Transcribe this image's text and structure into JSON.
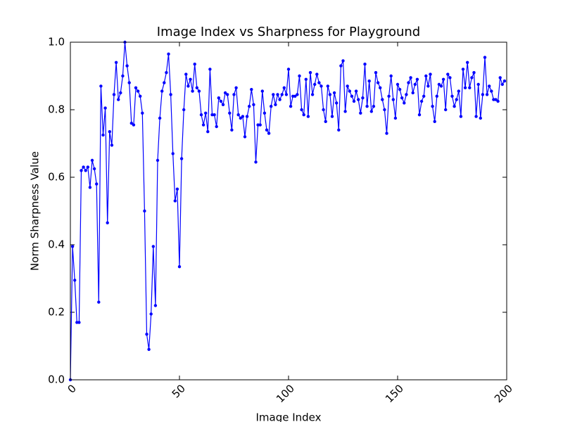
{
  "chart_data": {
    "type": "line",
    "title": "Image Index vs Sharpness for Playground",
    "x_label": "Image Index",
    "y_label": "Norm Sharpness Value",
    "x": [
      0,
      1,
      2,
      3,
      4,
      5,
      6,
      7,
      8,
      9,
      10,
      11,
      12,
      13,
      14,
      15,
      16,
      17,
      18,
      19,
      20,
      21,
      22,
      23,
      24,
      25,
      26,
      27,
      28,
      29,
      30,
      31,
      32,
      33,
      34,
      35,
      36,
      37,
      38,
      39,
      40,
      41,
      42,
      43,
      44,
      45,
      46,
      47,
      48,
      49,
      50,
      51,
      52,
      53,
      54,
      55,
      56,
      57,
      58,
      59,
      60,
      61,
      62,
      63,
      64,
      65,
      66,
      67,
      68,
      69,
      70,
      71,
      72,
      73,
      74,
      75,
      76,
      77,
      78,
      79,
      80,
      81,
      82,
      83,
      84,
      85,
      86,
      87,
      88,
      89,
      90,
      91,
      92,
      93,
      94,
      95,
      96,
      97,
      98,
      99,
      100,
      101,
      102,
      103,
      104,
      105,
      106,
      107,
      108,
      109,
      110,
      111,
      112,
      113,
      114,
      115,
      116,
      117,
      118,
      119,
      120,
      121,
      122,
      123,
      124,
      125,
      126,
      127,
      128,
      129,
      130,
      131,
      132,
      133,
      134,
      135,
      136,
      137,
      138,
      139,
      140,
      141,
      142,
      143,
      144,
      145,
      146,
      147,
      148,
      149,
      150,
      151,
      152,
      153,
      154,
      155,
      156,
      157,
      158,
      159,
      160,
      161,
      162,
      163,
      164,
      165,
      166,
      167,
      168,
      169,
      170,
      171,
      172,
      173,
      174,
      175,
      176,
      177,
      178,
      179,
      180,
      181,
      182,
      183,
      184,
      185,
      186,
      187,
      188,
      189,
      190,
      191,
      192,
      193,
      194,
      195,
      196,
      197,
      198,
      199
    ],
    "series": [
      {
        "color": "#0000ff",
        "values": [
          0.0,
          0.395,
          0.295,
          0.17,
          0.17,
          0.62,
          0.63,
          0.62,
          0.63,
          0.57,
          0.65,
          0.625,
          0.58,
          0.23,
          0.87,
          0.725,
          0.805,
          0.465,
          0.735,
          0.695,
          0.845,
          0.94,
          0.83,
          0.85,
          0.9,
          1.0,
          0.93,
          0.88,
          0.76,
          0.755,
          0.865,
          0.855,
          0.84,
          0.79,
          0.5,
          0.135,
          0.09,
          0.195,
          0.395,
          0.22,
          0.65,
          0.775,
          0.855,
          0.88,
          0.91,
          0.965,
          0.845,
          0.67,
          0.53,
          0.565,
          0.335,
          0.655,
          0.8,
          0.905,
          0.87,
          0.89,
          0.855,
          0.935,
          0.865,
          0.855,
          0.785,
          0.755,
          0.79,
          0.735,
          0.92,
          0.785,
          0.785,
          0.75,
          0.835,
          0.825,
          0.815,
          0.85,
          0.845,
          0.79,
          0.74,
          0.845,
          0.865,
          0.785,
          0.775,
          0.78,
          0.72,
          0.78,
          0.81,
          0.86,
          0.815,
          0.645,
          0.755,
          0.755,
          0.855,
          0.79,
          0.74,
          0.73,
          0.81,
          0.845,
          0.815,
          0.845,
          0.83,
          0.845,
          0.865,
          0.845,
          0.92,
          0.81,
          0.84,
          0.84,
          0.845,
          0.9,
          0.8,
          0.785,
          0.89,
          0.78,
          0.91,
          0.845,
          0.875,
          0.905,
          0.88,
          0.87,
          0.8,
          0.765,
          0.87,
          0.845,
          0.78,
          0.85,
          0.82,
          0.74,
          0.93,
          0.945,
          0.795,
          0.87,
          0.855,
          0.84,
          0.825,
          0.855,
          0.83,
          0.79,
          0.835,
          0.935,
          0.81,
          0.885,
          0.795,
          0.81,
          0.91,
          0.88,
          0.865,
          0.83,
          0.8,
          0.73,
          0.84,
          0.9,
          0.83,
          0.775,
          0.875,
          0.86,
          0.835,
          0.82,
          0.845,
          0.88,
          0.895,
          0.85,
          0.875,
          0.89,
          0.785,
          0.825,
          0.84,
          0.9,
          0.87,
          0.905,
          0.81,
          0.765,
          0.84,
          0.875,
          0.87,
          0.89,
          0.8,
          0.905,
          0.895,
          0.84,
          0.81,
          0.83,
          0.855,
          0.78,
          0.92,
          0.865,
          0.94,
          0.865,
          0.895,
          0.91,
          0.78,
          0.875,
          0.775,
          0.845,
          0.955,
          0.845,
          0.87,
          0.855,
          0.83,
          0.83,
          0.825,
          0.895,
          0.875,
          0.885
        ]
      }
    ],
    "xlim": [
      0,
      200
    ],
    "xticks": [
      0,
      50,
      100,
      150,
      200
    ],
    "ylim": [
      0,
      1
    ],
    "yticks": [
      {
        "value": 0,
        "label": "0.0"
      },
      0.2,
      0.4,
      0.6,
      0.8,
      {
        "value": 1,
        "label": "1.0"
      }
    ],
    "grid": false
  }
}
